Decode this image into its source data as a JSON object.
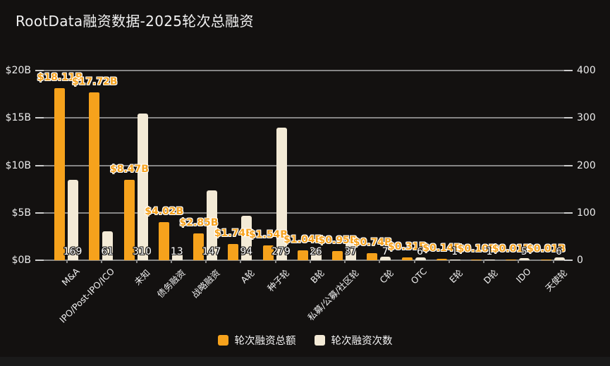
{
  "page": {
    "background": "#131110",
    "title": "RootData融资数据-2025轮次总融资"
  },
  "chart_data": {
    "type": "bar",
    "title": "RootData融资数据-2025轮次总融资",
    "categories": [
      "M&A",
      "IPO/Post-IPO/ICO",
      "未知",
      "债务融资",
      "战略融资",
      "A轮",
      "种子轮",
      "B轮",
      "私募/公募/社区轮",
      "C轮",
      "OTC",
      "E轮",
      "D轮",
      "IDO",
      "天使轮"
    ],
    "series": [
      {
        "name": "轮次融资总额",
        "axis": "left",
        "unit": "$B",
        "color": "#F6A21C",
        "values": [
          18.11,
          17.72,
          8.47,
          4.02,
          2.85,
          1.74,
          1.54,
          1.04,
          0.95,
          0.74,
          0.31,
          0.14,
          0.1,
          0.01,
          0.01
        ],
        "labels": [
          "$18.11B",
          "$17.72B",
          "$8.47B",
          "$4.02B",
          "$2.85B",
          "$1.74B",
          "$1.54B",
          "$1.04B",
          "$0.95B",
          "$0.74B",
          "$0.31B",
          "$0.14B",
          "$0.10B",
          "$0.01B",
          "$0.01B"
        ]
      },
      {
        "name": "轮次融资次数",
        "axis": "right",
        "color": "#F3EAD6",
        "values": [
          169,
          61,
          310,
          13,
          147,
          94,
          279,
          26,
          37,
          7,
          6,
          1,
          1,
          5,
          6
        ]
      }
    ],
    "left_axis": {
      "min": 0,
      "max": 20,
      "ticks": [
        "$0B",
        "$5B",
        "$10B",
        "$15B",
        "$20B"
      ]
    },
    "right_axis": {
      "min": 0,
      "max": 400,
      "ticks": [
        "0",
        "100",
        "200",
        "300",
        "400"
      ]
    },
    "grid": true,
    "legend_position": "bottom",
    "colors": {
      "grid": "#858585",
      "tick": "#cdcdcd",
      "value_label": "#F7A31F",
      "count_label": "#ffffff"
    }
  },
  "legend": {
    "items": [
      {
        "label": "轮次融资总额",
        "color": "#F6A21C"
      },
      {
        "label": "轮次融资次数",
        "color": "#F3EAD6"
      }
    ]
  }
}
